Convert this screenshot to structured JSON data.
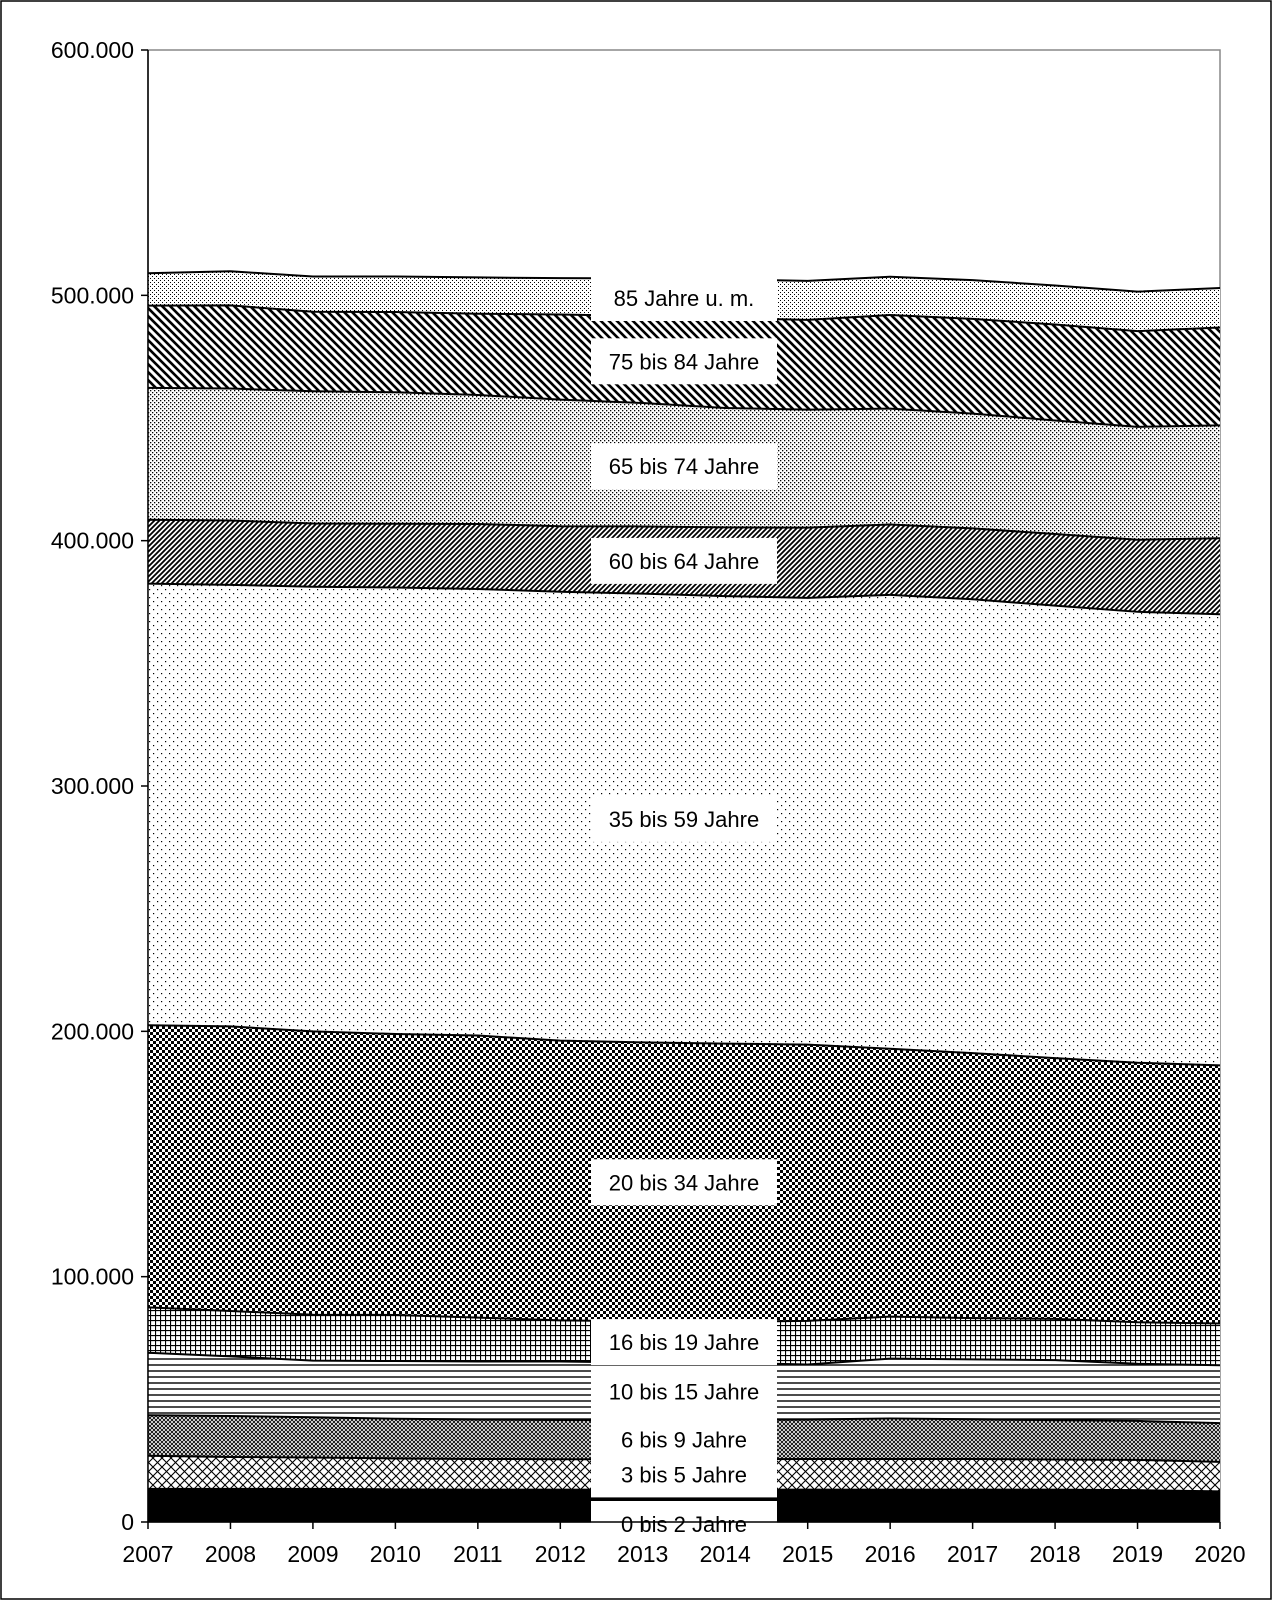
{
  "chart_data": {
    "type": "area",
    "stacked": true,
    "title": "",
    "xlabel": "",
    "ylabel": "",
    "ylim": [
      0,
      600000
    ],
    "y_ticks": [
      0,
      100000,
      200000,
      300000,
      400000,
      500000,
      600000
    ],
    "y_tick_labels": [
      "0",
      "100.000",
      "200.000",
      "300.000",
      "400.000",
      "500.000",
      "600.000"
    ],
    "x": [
      2007,
      2008,
      2009,
      2010,
      2011,
      2012,
      2013,
      2014,
      2015,
      2016,
      2017,
      2018,
      2019,
      2020
    ],
    "x_tick_labels": [
      "2007",
      "2008",
      "2009",
      "2010",
      "2011",
      "2012",
      "2013",
      "2014",
      "2015",
      "2016",
      "2017",
      "2018",
      "2019",
      "2020"
    ],
    "grid": false,
    "legend": "none",
    "series": [
      {
        "name": "0 bis 2 Jahre",
        "pattern": "solid",
        "values": [
          13500,
          13500,
          13500,
          13300,
          13200,
          13200,
          13200,
          13200,
          13200,
          13200,
          13200,
          13200,
          13000,
          12500
        ]
      },
      {
        "name": "3 bis 5 Jahre",
        "pattern": "crosshatch",
        "values": [
          13500,
          13000,
          12800,
          12600,
          12500,
          12400,
          12400,
          12400,
          12500,
          12500,
          12500,
          12300,
          12300,
          12000
        ]
      },
      {
        "name": "6 bis 9 Jahre",
        "pattern": "fine-crosshatch",
        "values": [
          16500,
          16700,
          16400,
          16200,
          16100,
          16000,
          15900,
          16000,
          16100,
          16500,
          16200,
          16000,
          15900,
          15800
        ]
      },
      {
        "name": "10 bis 15 Jahre",
        "pattern": "horizontal-lines",
        "values": [
          25500,
          24300,
          23100,
          23500,
          23600,
          23800,
          23500,
          23300,
          22400,
          24400,
          24400,
          24500,
          23300,
          23600
        ]
      },
      {
        "name": "16 bis 19 Jahre",
        "pattern": "grid",
        "values": [
          18500,
          18500,
          18700,
          18800,
          17900,
          16800,
          16800,
          16700,
          17800,
          17100,
          16800,
          16800,
          16900,
          17000
        ]
      },
      {
        "name": "20 bis 34 Jahre",
        "pattern": "checker",
        "values": [
          115000,
          116000,
          115500,
          114500,
          115000,
          114000,
          113700,
          113400,
          112600,
          109200,
          108000,
          106300,
          105800,
          105200
        ]
      },
      {
        "name": "35 bis 59 Jahre",
        "pattern": "sparse-dots",
        "values": [
          180000,
          180000,
          181200,
          182000,
          182000,
          183000,
          182900,
          182400,
          182100,
          185000,
          185000,
          184400,
          183800,
          183900
        ]
      },
      {
        "name": "60 bis 64 Jahre",
        "pattern": "diagonal-dense",
        "values": [
          26000,
          26200,
          25800,
          26000,
          26500,
          26700,
          27400,
          28000,
          28600,
          28700,
          28900,
          29200,
          29400,
          31000
        ]
      },
      {
        "name": "65 bis 74 Jahre",
        "pattern": "dense-dots",
        "values": [
          53800,
          53800,
          53900,
          53600,
          52600,
          51600,
          50300,
          48700,
          48100,
          47200,
          46800,
          46300,
          46000,
          46000
        ]
      },
      {
        "name": "75 bis 84 Jahre",
        "pattern": "diagonal-wide",
        "values": [
          33500,
          33900,
          32400,
          32700,
          33100,
          34700,
          35500,
          36600,
          36600,
          38200,
          38600,
          39100,
          39000,
          39900
        ]
      },
      {
        "name": "85 Jahre u. m.",
        "pattern": "light-dots",
        "values": [
          13200,
          13900,
          14400,
          14500,
          14800,
          14800,
          15300,
          15800,
          15900,
          15600,
          15800,
          15900,
          16100,
          16100
        ]
      }
    ]
  }
}
